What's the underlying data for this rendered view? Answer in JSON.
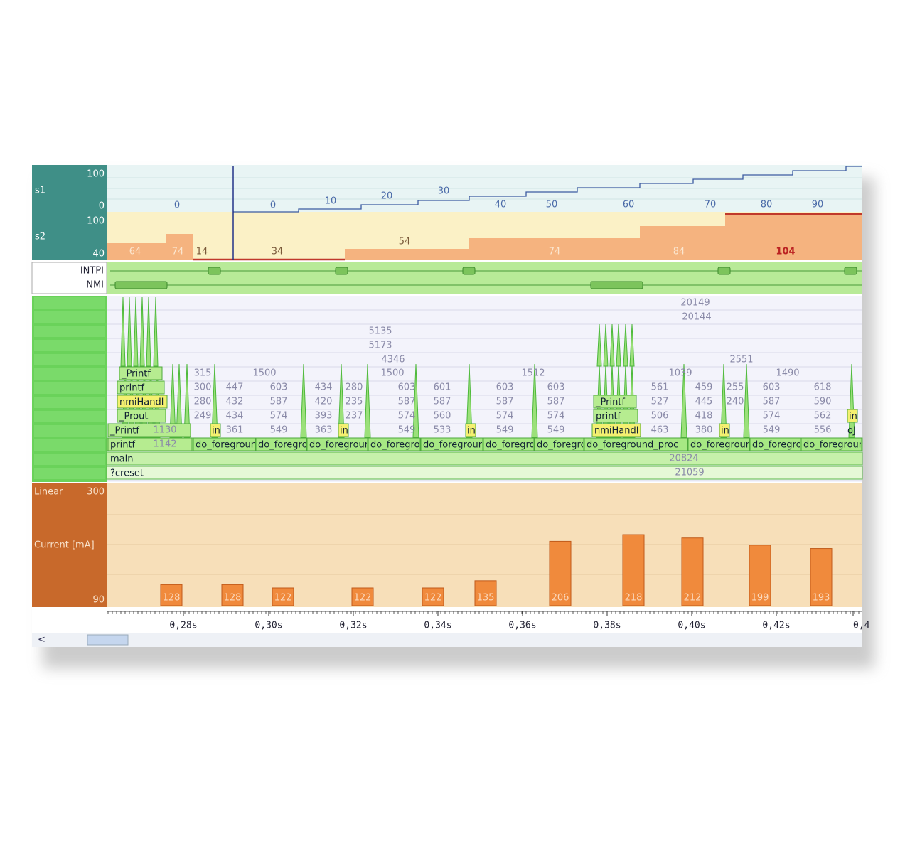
{
  "panels": {
    "s1": {
      "name": "s1",
      "max": "100",
      "min": "0",
      "step_labels": [
        "0",
        "0",
        "10",
        "20",
        "30",
        "40",
        "50",
        "60",
        "70",
        "80",
        "90"
      ]
    },
    "s2": {
      "name": "s2",
      "max": "100",
      "min": "40",
      "step_labels": [
        "64",
        "74",
        "14",
        "34",
        "54",
        "74",
        "84",
        "104"
      ]
    },
    "irq": {
      "labels": [
        "INTPI",
        "NMI"
      ]
    },
    "stack": {
      "frames": [
        "_Printf",
        "printf",
        "nmiHandl",
        "_Prout",
        "_Printf",
        "printf",
        "main",
        "?creset"
      ],
      "cluster_frames": [
        "_Printf",
        "printf",
        "nmiHandl"
      ],
      "proc_name": "do_foreground_proc",
      "in_label": "in",
      "end_label": "oJ",
      "totals": [
        "20149",
        "20144",
        "5135",
        "5173",
        "4346",
        "2551",
        "1130",
        "1142",
        "20824",
        "21059"
      ],
      "columns": [
        [
          "315",
          "300",
          "280",
          "249",
          null
        ],
        [
          null,
          "447",
          "432",
          "434",
          "361"
        ],
        [
          "1500",
          "603",
          "587",
          "574",
          "549"
        ],
        [
          null,
          "434",
          "420",
          "393",
          "363"
        ],
        [
          null,
          "280",
          "235",
          "237",
          null
        ],
        [
          "1500",
          "603",
          "587",
          "574",
          "549"
        ],
        [
          null,
          "601",
          "587",
          "560",
          "533"
        ],
        [
          null,
          "603",
          "587",
          "574",
          "549"
        ],
        [
          "1512",
          "603",
          "587",
          "574",
          "549"
        ],
        [
          "1039",
          "561",
          "527",
          "506",
          "463"
        ],
        [
          null,
          "459",
          "445",
          "418",
          "380"
        ],
        [
          null,
          "255",
          "240",
          null,
          null
        ],
        [
          "1490",
          "603",
          "587",
          "574",
          "549"
        ],
        [
          null,
          "618",
          "590",
          "562",
          "556"
        ]
      ]
    },
    "current": {
      "scale": "Linear",
      "axis_label": "Current [mA]",
      "ylim": [
        90,
        300
      ],
      "values": [
        128,
        128,
        122,
        122,
        122,
        135,
        206,
        218,
        212,
        199,
        193
      ]
    }
  },
  "time_axis": {
    "ticks": [
      "0,28s",
      "0,30s",
      "0,32s",
      "0,34s",
      "0,36s",
      "0,38s",
      "0,40s",
      "0,42s",
      "0,4"
    ]
  }
}
